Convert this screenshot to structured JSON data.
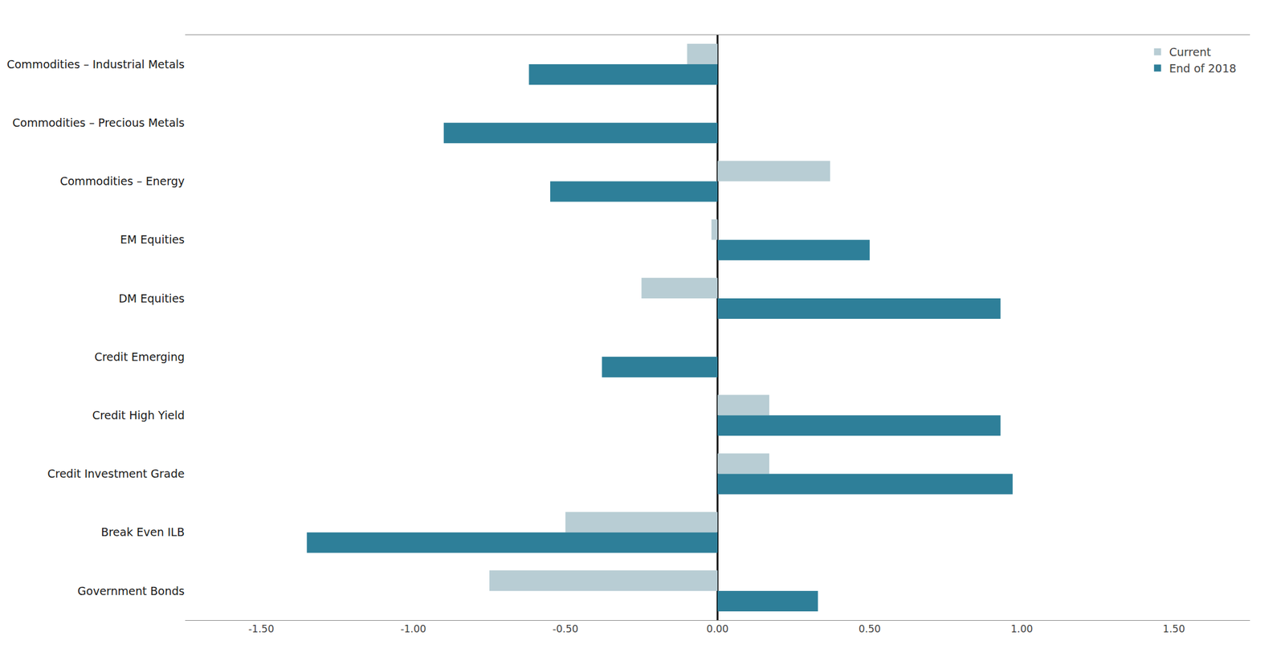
{
  "chart_data": {
    "type": "bar",
    "orientation": "horizontal",
    "categories": [
      "Commodities – Industrial Metals",
      "Commodities – Precious Metals",
      "Commodities – Energy",
      "EM Equities",
      "DM Equities",
      "Credit Emerging",
      "Credit High Yield",
      "Credit Investment Grade",
      "Break Even ILB",
      "Government Bonds"
    ],
    "series": [
      {
        "name": "Current",
        "color": "#b8cdd4",
        "values": [
          -0.1,
          0.0,
          0.37,
          -0.02,
          -0.25,
          0.0,
          0.17,
          0.17,
          -0.5,
          -0.75
        ]
      },
      {
        "name": "End of 2018",
        "color": "#2e7f99",
        "values": [
          -0.62,
          -0.9,
          -0.55,
          0.5,
          0.93,
          -0.38,
          0.93,
          0.97,
          -1.35,
          0.33
        ]
      }
    ],
    "xlim": [
      -1.75,
      1.75
    ],
    "xticks": [
      {
        "value": -1.5,
        "label": "-1.50"
      },
      {
        "value": -1.0,
        "label": "-1.00"
      },
      {
        "value": -0.5,
        "label": "-0.50"
      },
      {
        "value": 0.0,
        "label": "0.00"
      },
      {
        "value": 0.5,
        "label": "0.50"
      },
      {
        "value": 1.0,
        "label": "1.00"
      },
      {
        "value": 1.5,
        "label": "1.50"
      }
    ],
    "grid": false,
    "legend": "upper right"
  }
}
